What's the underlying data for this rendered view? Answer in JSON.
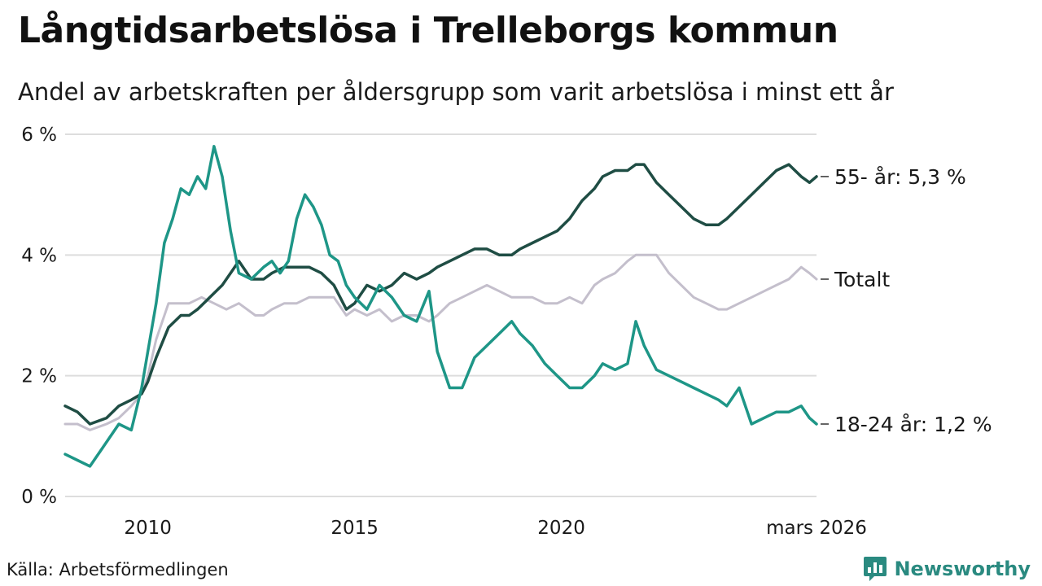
{
  "title": "Långtidsarbetslösa i Trelleborgs kommun",
  "subtitle": "Andel av arbetskraften per åldersgrupp som varit arbetslösa i minst ett år",
  "source": "Källa: Arbetsförmedlingen",
  "brand": {
    "name": "Newsworthy",
    "icon": "bar-chart-bubble-icon",
    "color": "#2a8a80"
  },
  "chart_data": {
    "type": "line",
    "title": "Långtidsarbetslösa i Trelleborgs kommun",
    "xlabel": "",
    "ylabel": "",
    "xlim": [
      2008.0,
      2026.17
    ],
    "ylim": [
      0,
      6
    ],
    "grid": true,
    "y_ticks": [
      {
        "value": 0,
        "label": "0 %"
      },
      {
        "value": 2,
        "label": "2 %"
      },
      {
        "value": 4,
        "label": "4 %"
      },
      {
        "value": 6,
        "label": "6 %"
      }
    ],
    "x_ticks": [
      {
        "value": 2010,
        "label": "2010"
      },
      {
        "value": 2015,
        "label": "2015"
      },
      {
        "value": 2020,
        "label": "2020"
      },
      {
        "value": 2026.17,
        "label": "mars 2026"
      }
    ],
    "series": [
      {
        "name": "Totalt",
        "end_label": "Totalt",
        "color": "#c4bfcc",
        "x": [
          2008.0,
          2008.3,
          2008.6,
          2009.0,
          2009.3,
          2009.6,
          2009.85,
          2010.0,
          2010.2,
          2010.5,
          2010.8,
          2011.0,
          2011.3,
          2011.6,
          2011.9,
          2012.2,
          2012.6,
          2012.8,
          2013.0,
          2013.3,
          2013.6,
          2013.9,
          2014.2,
          2014.5,
          2014.8,
          2015.0,
          2015.3,
          2015.6,
          2015.9,
          2016.2,
          2016.5,
          2016.8,
          2017.0,
          2017.3,
          2017.6,
          2017.9,
          2018.2,
          2018.5,
          2018.8,
          2019.0,
          2019.3,
          2019.6,
          2019.9,
          2020.2,
          2020.5,
          2020.8,
          2021.0,
          2021.3,
          2021.6,
          2021.8,
          2022.0,
          2022.3,
          2022.6,
          2022.9,
          2023.2,
          2023.5,
          2023.8,
          2024.0,
          2024.3,
          2024.6,
          2024.9,
          2025.2,
          2025.5,
          2025.8,
          2026.0,
          2026.17
        ],
        "values": [
          1.2,
          1.2,
          1.1,
          1.2,
          1.3,
          1.5,
          1.7,
          2.0,
          2.6,
          3.2,
          3.2,
          3.2,
          3.3,
          3.2,
          3.1,
          3.2,
          3.0,
          3.0,
          3.1,
          3.2,
          3.2,
          3.3,
          3.3,
          3.3,
          3.0,
          3.1,
          3.0,
          3.1,
          2.9,
          3.0,
          3.0,
          2.9,
          3.0,
          3.2,
          3.3,
          3.4,
          3.5,
          3.4,
          3.3,
          3.3,
          3.3,
          3.2,
          3.2,
          3.3,
          3.2,
          3.5,
          3.6,
          3.7,
          3.9,
          4.0,
          4.0,
          4.0,
          3.7,
          3.5,
          3.3,
          3.2,
          3.1,
          3.1,
          3.2,
          3.3,
          3.4,
          3.5,
          3.6,
          3.8,
          3.7,
          3.6
        ]
      },
      {
        "name": "55- år",
        "end_label": "55- år: 5,3 %",
        "color": "#1f4d44",
        "x": [
          2008.0,
          2008.3,
          2008.6,
          2009.0,
          2009.3,
          2009.6,
          2009.85,
          2010.0,
          2010.2,
          2010.5,
          2010.8,
          2011.0,
          2011.2,
          2011.5,
          2011.8,
          2012.0,
          2012.2,
          2012.5,
          2012.8,
          2013.0,
          2013.3,
          2013.6,
          2013.9,
          2014.2,
          2014.5,
          2014.8,
          2015.0,
          2015.3,
          2015.6,
          2015.9,
          2016.2,
          2016.5,
          2016.8,
          2017.0,
          2017.3,
          2017.6,
          2017.9,
          2018.2,
          2018.5,
          2018.8,
          2019.0,
          2019.3,
          2019.6,
          2019.9,
          2020.2,
          2020.5,
          2020.8,
          2021.0,
          2021.3,
          2021.6,
          2021.8,
          2022.0,
          2022.3,
          2022.6,
          2022.9,
          2023.2,
          2023.5,
          2023.8,
          2024.0,
          2024.3,
          2024.6,
          2024.9,
          2025.2,
          2025.5,
          2025.8,
          2026.0,
          2026.17
        ],
        "values": [
          1.5,
          1.4,
          1.2,
          1.3,
          1.5,
          1.6,
          1.7,
          1.9,
          2.3,
          2.8,
          3.0,
          3.0,
          3.1,
          3.3,
          3.5,
          3.7,
          3.9,
          3.6,
          3.6,
          3.7,
          3.8,
          3.8,
          3.8,
          3.7,
          3.5,
          3.1,
          3.2,
          3.5,
          3.4,
          3.5,
          3.7,
          3.6,
          3.7,
          3.8,
          3.9,
          4.0,
          4.1,
          4.1,
          4.0,
          4.0,
          4.1,
          4.2,
          4.3,
          4.4,
          4.6,
          4.9,
          5.1,
          5.3,
          5.4,
          5.4,
          5.5,
          5.5,
          5.2,
          5.0,
          4.8,
          4.6,
          4.5,
          4.5,
          4.6,
          4.8,
          5.0,
          5.2,
          5.4,
          5.5,
          5.3,
          5.2,
          5.3
        ]
      },
      {
        "name": "18-24 år",
        "end_label": "18-24 år: 1,2 %",
        "color": "#1e9687",
        "x": [
          2008.0,
          2008.3,
          2008.6,
          2009.0,
          2009.3,
          2009.6,
          2009.85,
          2010.0,
          2010.2,
          2010.4,
          2010.6,
          2010.8,
          2011.0,
          2011.2,
          2011.4,
          2011.6,
          2011.8,
          2012.0,
          2012.2,
          2012.5,
          2012.8,
          2013.0,
          2013.2,
          2013.4,
          2013.6,
          2013.8,
          2014.0,
          2014.2,
          2014.4,
          2014.6,
          2014.8,
          2015.0,
          2015.3,
          2015.6,
          2015.9,
          2016.2,
          2016.5,
          2016.8,
          2017.0,
          2017.3,
          2017.6,
          2017.9,
          2018.2,
          2018.5,
          2018.8,
          2019.0,
          2019.3,
          2019.6,
          2019.9,
          2020.2,
          2020.5,
          2020.8,
          2021.0,
          2021.3,
          2021.6,
          2021.8,
          2022.0,
          2022.3,
          2022.6,
          2022.9,
          2023.2,
          2023.5,
          2023.8,
          2024.0,
          2024.3,
          2024.6,
          2024.9,
          2025.2,
          2025.5,
          2025.8,
          2026.0,
          2026.17
        ],
        "values": [
          0.7,
          0.6,
          0.5,
          0.9,
          1.2,
          1.1,
          1.8,
          2.4,
          3.2,
          4.2,
          4.6,
          5.1,
          5.0,
          5.3,
          5.1,
          5.8,
          5.3,
          4.4,
          3.7,
          3.6,
          3.8,
          3.9,
          3.7,
          3.9,
          4.6,
          5.0,
          4.8,
          4.5,
          4.0,
          3.9,
          3.5,
          3.3,
          3.1,
          3.5,
          3.3,
          3.0,
          2.9,
          3.4,
          2.4,
          1.8,
          1.8,
          2.3,
          2.5,
          2.7,
          2.9,
          2.7,
          2.5,
          2.2,
          2.0,
          1.8,
          1.8,
          2.0,
          2.2,
          2.1,
          2.2,
          2.9,
          2.5,
          2.1,
          2.0,
          1.9,
          1.8,
          1.7,
          1.6,
          1.5,
          1.8,
          1.2,
          1.3,
          1.4,
          1.4,
          1.5,
          1.3,
          1.2
        ]
      }
    ]
  }
}
